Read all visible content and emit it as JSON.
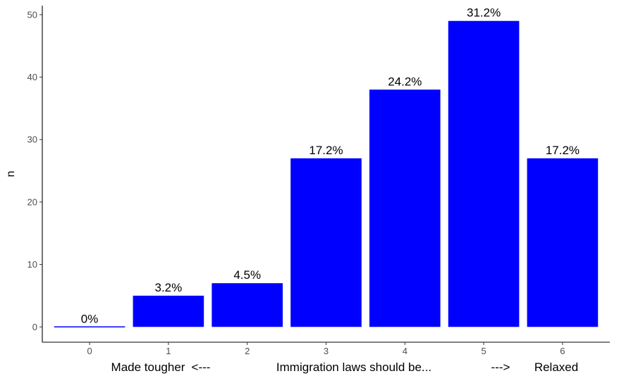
{
  "chart_data": {
    "type": "bar",
    "categories": [
      "0",
      "1",
      "2",
      "3",
      "4",
      "5",
      "6"
    ],
    "values": [
      0,
      5,
      7,
      27,
      38,
      49,
      27
    ],
    "data_labels": [
      "0%",
      "3.2%",
      "4.5%",
      "17.2%",
      "24.2%",
      "31.2%",
      "17.2%"
    ],
    "title": "",
    "xlabel": "Made tougher   <---          Immigration laws should be...          --->   Relaxed",
    "xlabel_parts": [
      "Made tougher",
      "<---",
      "Immigration laws should be...",
      "--->",
      "Relaxed"
    ],
    "ylabel": "n",
    "ylim": [
      -2.45,
      51.45
    ],
    "yticks": [
      0,
      10,
      20,
      30,
      40,
      50
    ],
    "grid": false,
    "legend": "none",
    "bar_color": "#0000ff",
    "axis_color": "#000000",
    "tick_label_color": "#4d4d4d"
  }
}
